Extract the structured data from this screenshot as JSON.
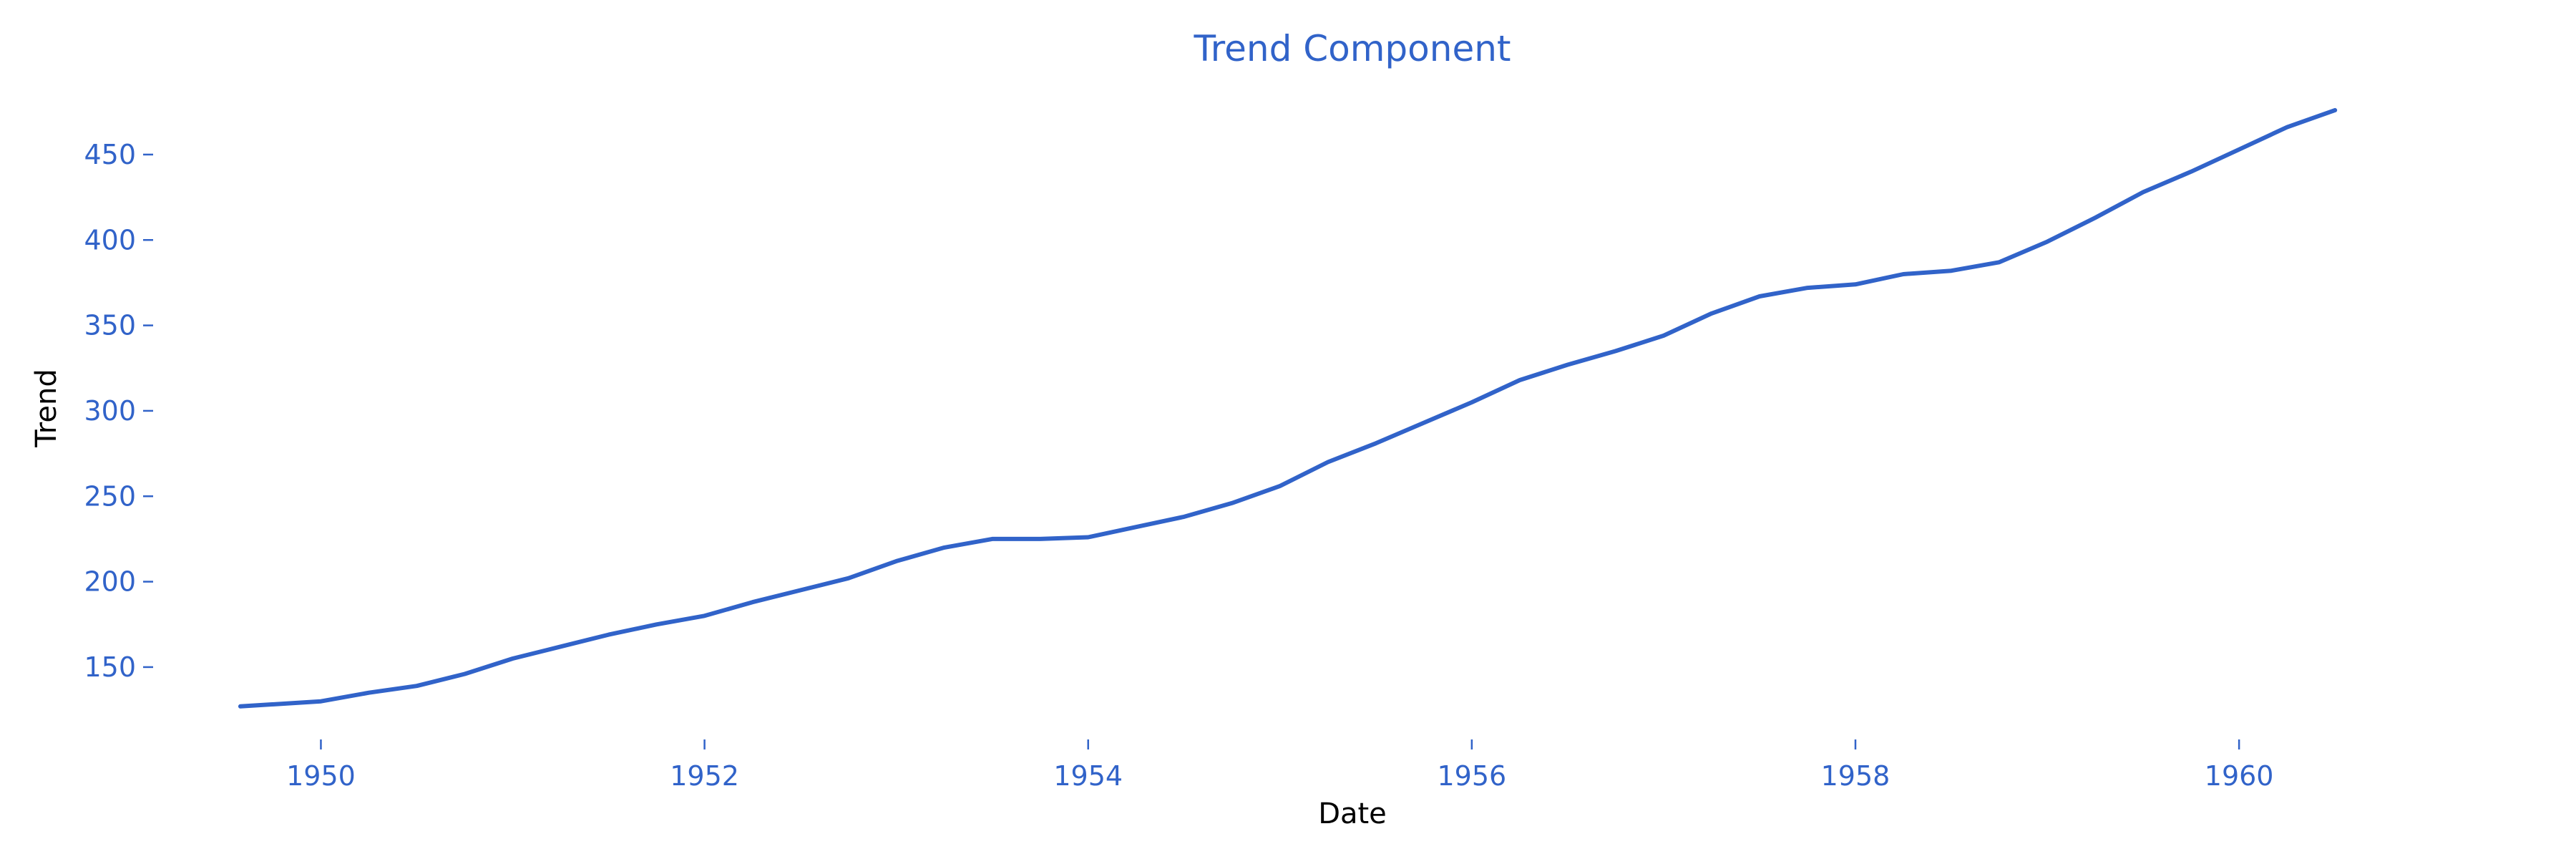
{
  "chart_data": {
    "type": "line",
    "title": "Trend Component",
    "xlabel": "Date",
    "ylabel": "Trend",
    "x_ticks": [
      "1950",
      "1952",
      "1954",
      "1956",
      "1958",
      "1960"
    ],
    "x_tick_values": [
      1950,
      1952,
      1954,
      1956,
      1958,
      1960
    ],
    "y_ticks": [
      "150",
      "200",
      "250",
      "300",
      "350",
      "400",
      "450"
    ],
    "y_tick_values": [
      150,
      200,
      250,
      300,
      350,
      400,
      450
    ],
    "xlim": [
      1949.2,
      1961.1
    ],
    "ylim": [
      111,
      486
    ],
    "grid": false,
    "colors": {
      "line": "#3163c9",
      "ticks": "#3163c9",
      "title": "#3163c9",
      "axis_labels": "#000000"
    },
    "series": [
      {
        "x": [
          1949.58,
          1950.0,
          1950.25,
          1950.5,
          1950.75,
          1951.0,
          1951.25,
          1951.5,
          1951.75,
          1952.0,
          1952.25,
          1952.5,
          1952.75,
          1953.0,
          1953.25,
          1953.5,
          1953.75,
          1954.0,
          1954.25,
          1954.5,
          1954.75,
          1955.0,
          1955.25,
          1955.5,
          1955.75,
          1956.0,
          1956.25,
          1956.5,
          1956.75,
          1957.0,
          1957.25,
          1957.5,
          1957.75,
          1958.0,
          1958.25,
          1958.5,
          1958.75,
          1959.0,
          1959.25,
          1959.5,
          1959.75,
          1960.0,
          1960.25,
          1960.5
        ],
        "values": [
          127,
          130,
          135,
          139,
          146,
          155,
          162,
          169,
          175,
          180,
          188,
          195,
          202,
          212,
          220,
          225,
          225,
          226,
          232,
          238,
          246,
          256,
          270,
          281,
          293,
          305,
          318,
          327,
          335,
          344,
          357,
          367,
          372,
          374,
          380,
          382,
          387,
          399,
          413,
          428,
          440,
          453,
          466,
          476
        ]
      }
    ]
  }
}
